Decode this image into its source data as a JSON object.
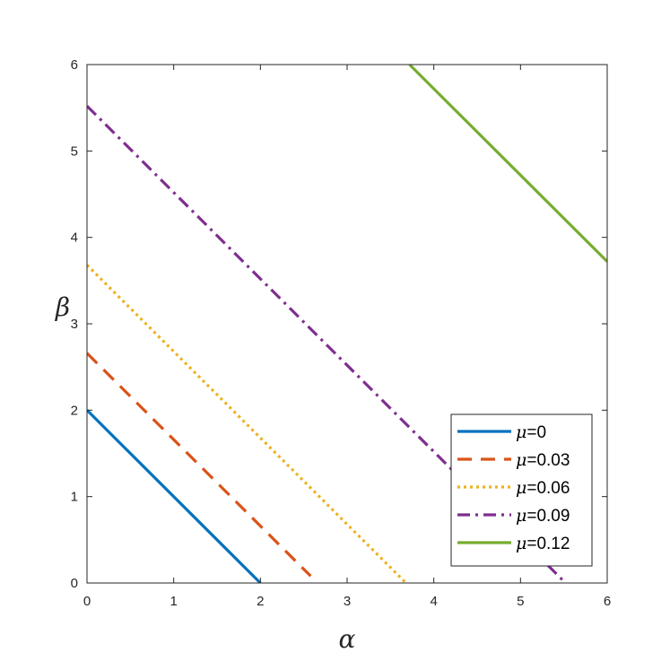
{
  "chart_data": {
    "type": "line",
    "xlabel": "α",
    "ylabel": "β",
    "xlim": [
      0,
      6
    ],
    "ylim": [
      0,
      6
    ],
    "xticks": [
      "0",
      "1",
      "2",
      "3",
      "4",
      "5",
      "6"
    ],
    "yticks": [
      "0",
      "1",
      "2",
      "3",
      "4",
      "5",
      "6"
    ],
    "grid": false,
    "legend_position": "bottom-right",
    "series": [
      {
        "name": "=0",
        "symbol": "μ",
        "color": "#0072BD",
        "style": "solid",
        "x": [
          0,
          2.0
        ],
        "y": [
          2.0,
          0
        ]
      },
      {
        "name": "=0.03",
        "symbol": "μ",
        "color": "#D95319",
        "style": "dashed",
        "x": [
          0,
          2.58
        ],
        "y": [
          2.66,
          0.08
        ]
      },
      {
        "name": "=0.06",
        "symbol": "μ",
        "color": "#EDB120",
        "style": "dotted",
        "x": [
          0,
          3.68
        ],
        "y": [
          3.68,
          0
        ]
      },
      {
        "name": "=0.09",
        "symbol": "μ",
        "color": "#7E2F8E",
        "style": "dashdot",
        "x": [
          0,
          5.52
        ],
        "y": [
          5.52,
          0
        ]
      },
      {
        "name": "=0.12",
        "symbol": "μ",
        "color": "#77AC30",
        "style": "solid",
        "x": [
          3.72,
          6
        ],
        "y": [
          6,
          3.72
        ]
      }
    ]
  }
}
